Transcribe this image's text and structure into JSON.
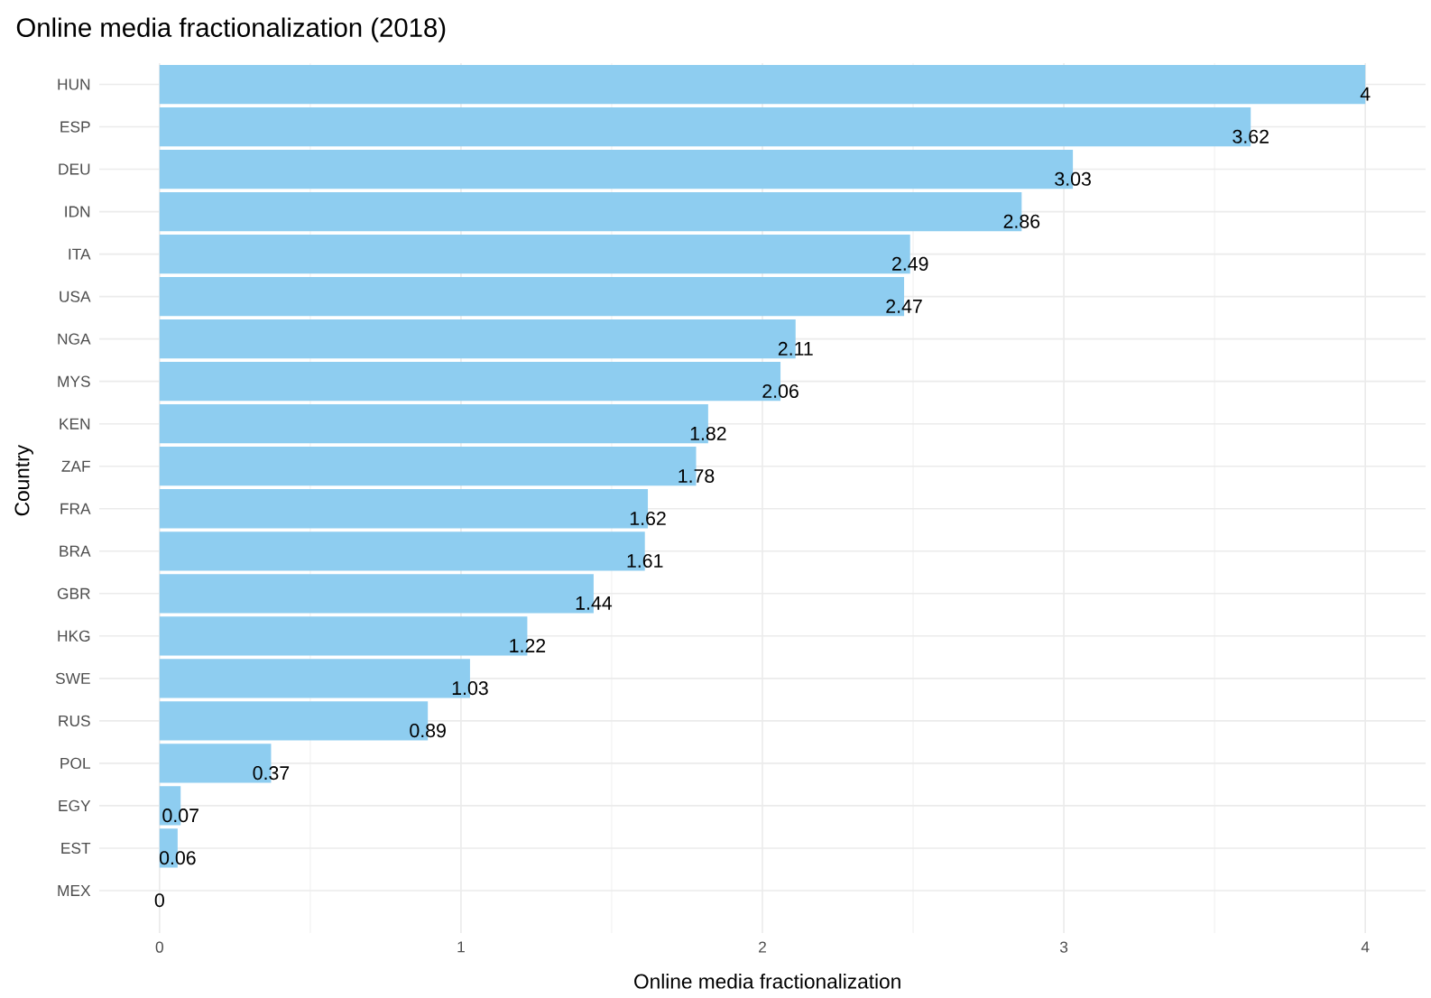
{
  "chart_data": {
    "type": "bar",
    "orientation": "horizontal",
    "title": "Online media fractionalization (2018)",
    "xlabel": "Online media fractionalization",
    "ylabel": "Country",
    "categories": [
      "HUN",
      "ESP",
      "DEU",
      "IDN",
      "ITA",
      "USA",
      "NGA",
      "MYS",
      "KEN",
      "ZAF",
      "FRA",
      "BRA",
      "GBR",
      "HKG",
      "SWE",
      "RUS",
      "POL",
      "EGY",
      "EST",
      "MEX"
    ],
    "values": [
      4,
      3.62,
      3.03,
      2.86,
      2.49,
      2.47,
      2.11,
      2.06,
      1.82,
      1.78,
      1.62,
      1.61,
      1.44,
      1.22,
      1.03,
      0.89,
      0.37,
      0.07,
      0.06,
      0
    ],
    "color": "#8ecdf0",
    "xlim": [
      -0.2,
      4.2
    ],
    "xticks": [
      0,
      1,
      2,
      3,
      4
    ],
    "grid": true,
    "data_labels": true
  }
}
